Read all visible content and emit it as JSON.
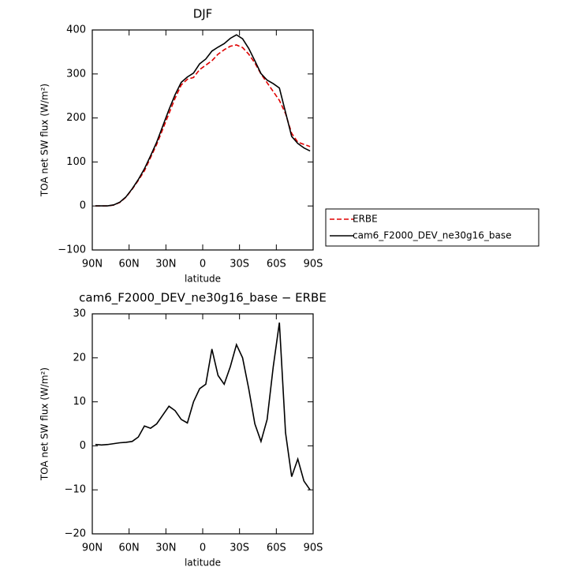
{
  "chart_data": [
    {
      "type": "line",
      "title": "DJF",
      "x_label": "latitude",
      "y_label": "TOA net SW flux (W/m²)",
      "x": [
        87.5,
        82.5,
        77.5,
        72.5,
        67.5,
        62.5,
        57.5,
        52.5,
        47.5,
        42.5,
        37.5,
        32.5,
        27.5,
        22.5,
        17.5,
        12.5,
        7.5,
        2.5,
        -2.5,
        -7.5,
        -12.5,
        -17.5,
        -22.5,
        -27.5,
        -32.5,
        -37.5,
        -42.5,
        -47.5,
        -52.5,
        -57.5,
        -62.5,
        -67.5,
        -72.5,
        -77.5,
        -82.5,
        -87.5
      ],
      "series": [
        {
          "name": "ERBE",
          "color": "#e00000",
          "dash": true,
          "values": [
            0,
            0,
            0,
            2,
            8,
            20,
            38,
            58,
            80,
            110,
            140,
            175,
            210,
            245,
            275,
            288,
            292,
            310,
            320,
            330,
            345,
            355,
            363,
            366,
            360,
            345,
            325,
            300,
            280,
            260,
            240,
            210,
            165,
            145,
            140,
            135
          ]
        },
        {
          "name": "cam6_F2000_DEV_ne30g16_base",
          "color": "#000000",
          "dash": false,
          "values": [
            0.3,
            0.2,
            0.3,
            2.5,
            8.7,
            20.8,
            39,
            60,
            84.5,
            114,
            145,
            182,
            219,
            253,
            281,
            293.2,
            302,
            323,
            334,
            352,
            361,
            369,
            381,
            389,
            380,
            358,
            330,
            301,
            286,
            278,
            268,
            213,
            158,
            142,
            132,
            125
          ]
        }
      ],
      "xlim": [
        90,
        -90
      ],
      "xticks": [
        {
          "value": 90,
          "label": "90N"
        },
        {
          "value": 60,
          "label": "60N"
        },
        {
          "value": 30,
          "label": "30N"
        },
        0,
        {
          "value": -30,
          "label": "30S"
        },
        {
          "value": -60,
          "label": "60S"
        },
        {
          "value": -90,
          "label": "90S"
        }
      ],
      "ylim": [
        -100,
        400
      ],
      "yticks": [
        {
          "value": -100,
          "label": "−100"
        },
        0,
        100,
        200,
        300,
        400
      ],
      "legend": "right"
    },
    {
      "type": "line",
      "title": "cam6_F2000_DEV_ne30g16_base − ERBE",
      "x_label": "latitude",
      "y_label": "TOA net SW flux (W/m²)",
      "x": [
        87.5,
        82.5,
        77.5,
        72.5,
        67.5,
        62.5,
        57.5,
        52.5,
        47.5,
        42.5,
        37.5,
        32.5,
        27.5,
        22.5,
        17.5,
        12.5,
        7.5,
        2.5,
        -2.5,
        -7.5,
        -12.5,
        -17.5,
        -22.5,
        -27.5,
        -32.5,
        -37.5,
        -42.5,
        -47.5,
        -52.5,
        -57.5,
        -62.5,
        -67.5,
        -72.5,
        -77.5,
        -82.5,
        -87.5
      ],
      "series": [
        {
          "color": "#000000",
          "dash": false,
          "values": [
            0.3,
            0.2,
            0.3,
            0.5,
            0.7,
            0.8,
            1,
            2,
            4.5,
            4,
            5,
            7,
            9,
            8,
            6,
            5.2,
            10,
            13,
            14,
            22,
            16,
            14,
            18,
            23,
            20,
            13,
            5,
            1,
            6,
            18,
            28,
            3,
            -7,
            -3,
            -8,
            -10
          ]
        }
      ],
      "xlim": [
        90,
        -90
      ],
      "xticks": [
        {
          "value": 90,
          "label": "90N"
        },
        {
          "value": 60,
          "label": "60N"
        },
        {
          "value": 30,
          "label": "30N"
        },
        0,
        {
          "value": -30,
          "label": "30S"
        },
        {
          "value": -60,
          "label": "60S"
        },
        {
          "value": -90,
          "label": "90S"
        }
      ],
      "ylim": [
        -20,
        30
      ],
      "yticks": [
        {
          "value": -20,
          "label": "−20"
        },
        {
          "value": -10,
          "label": "−10"
        },
        0,
        10,
        20,
        30
      ]
    }
  ]
}
